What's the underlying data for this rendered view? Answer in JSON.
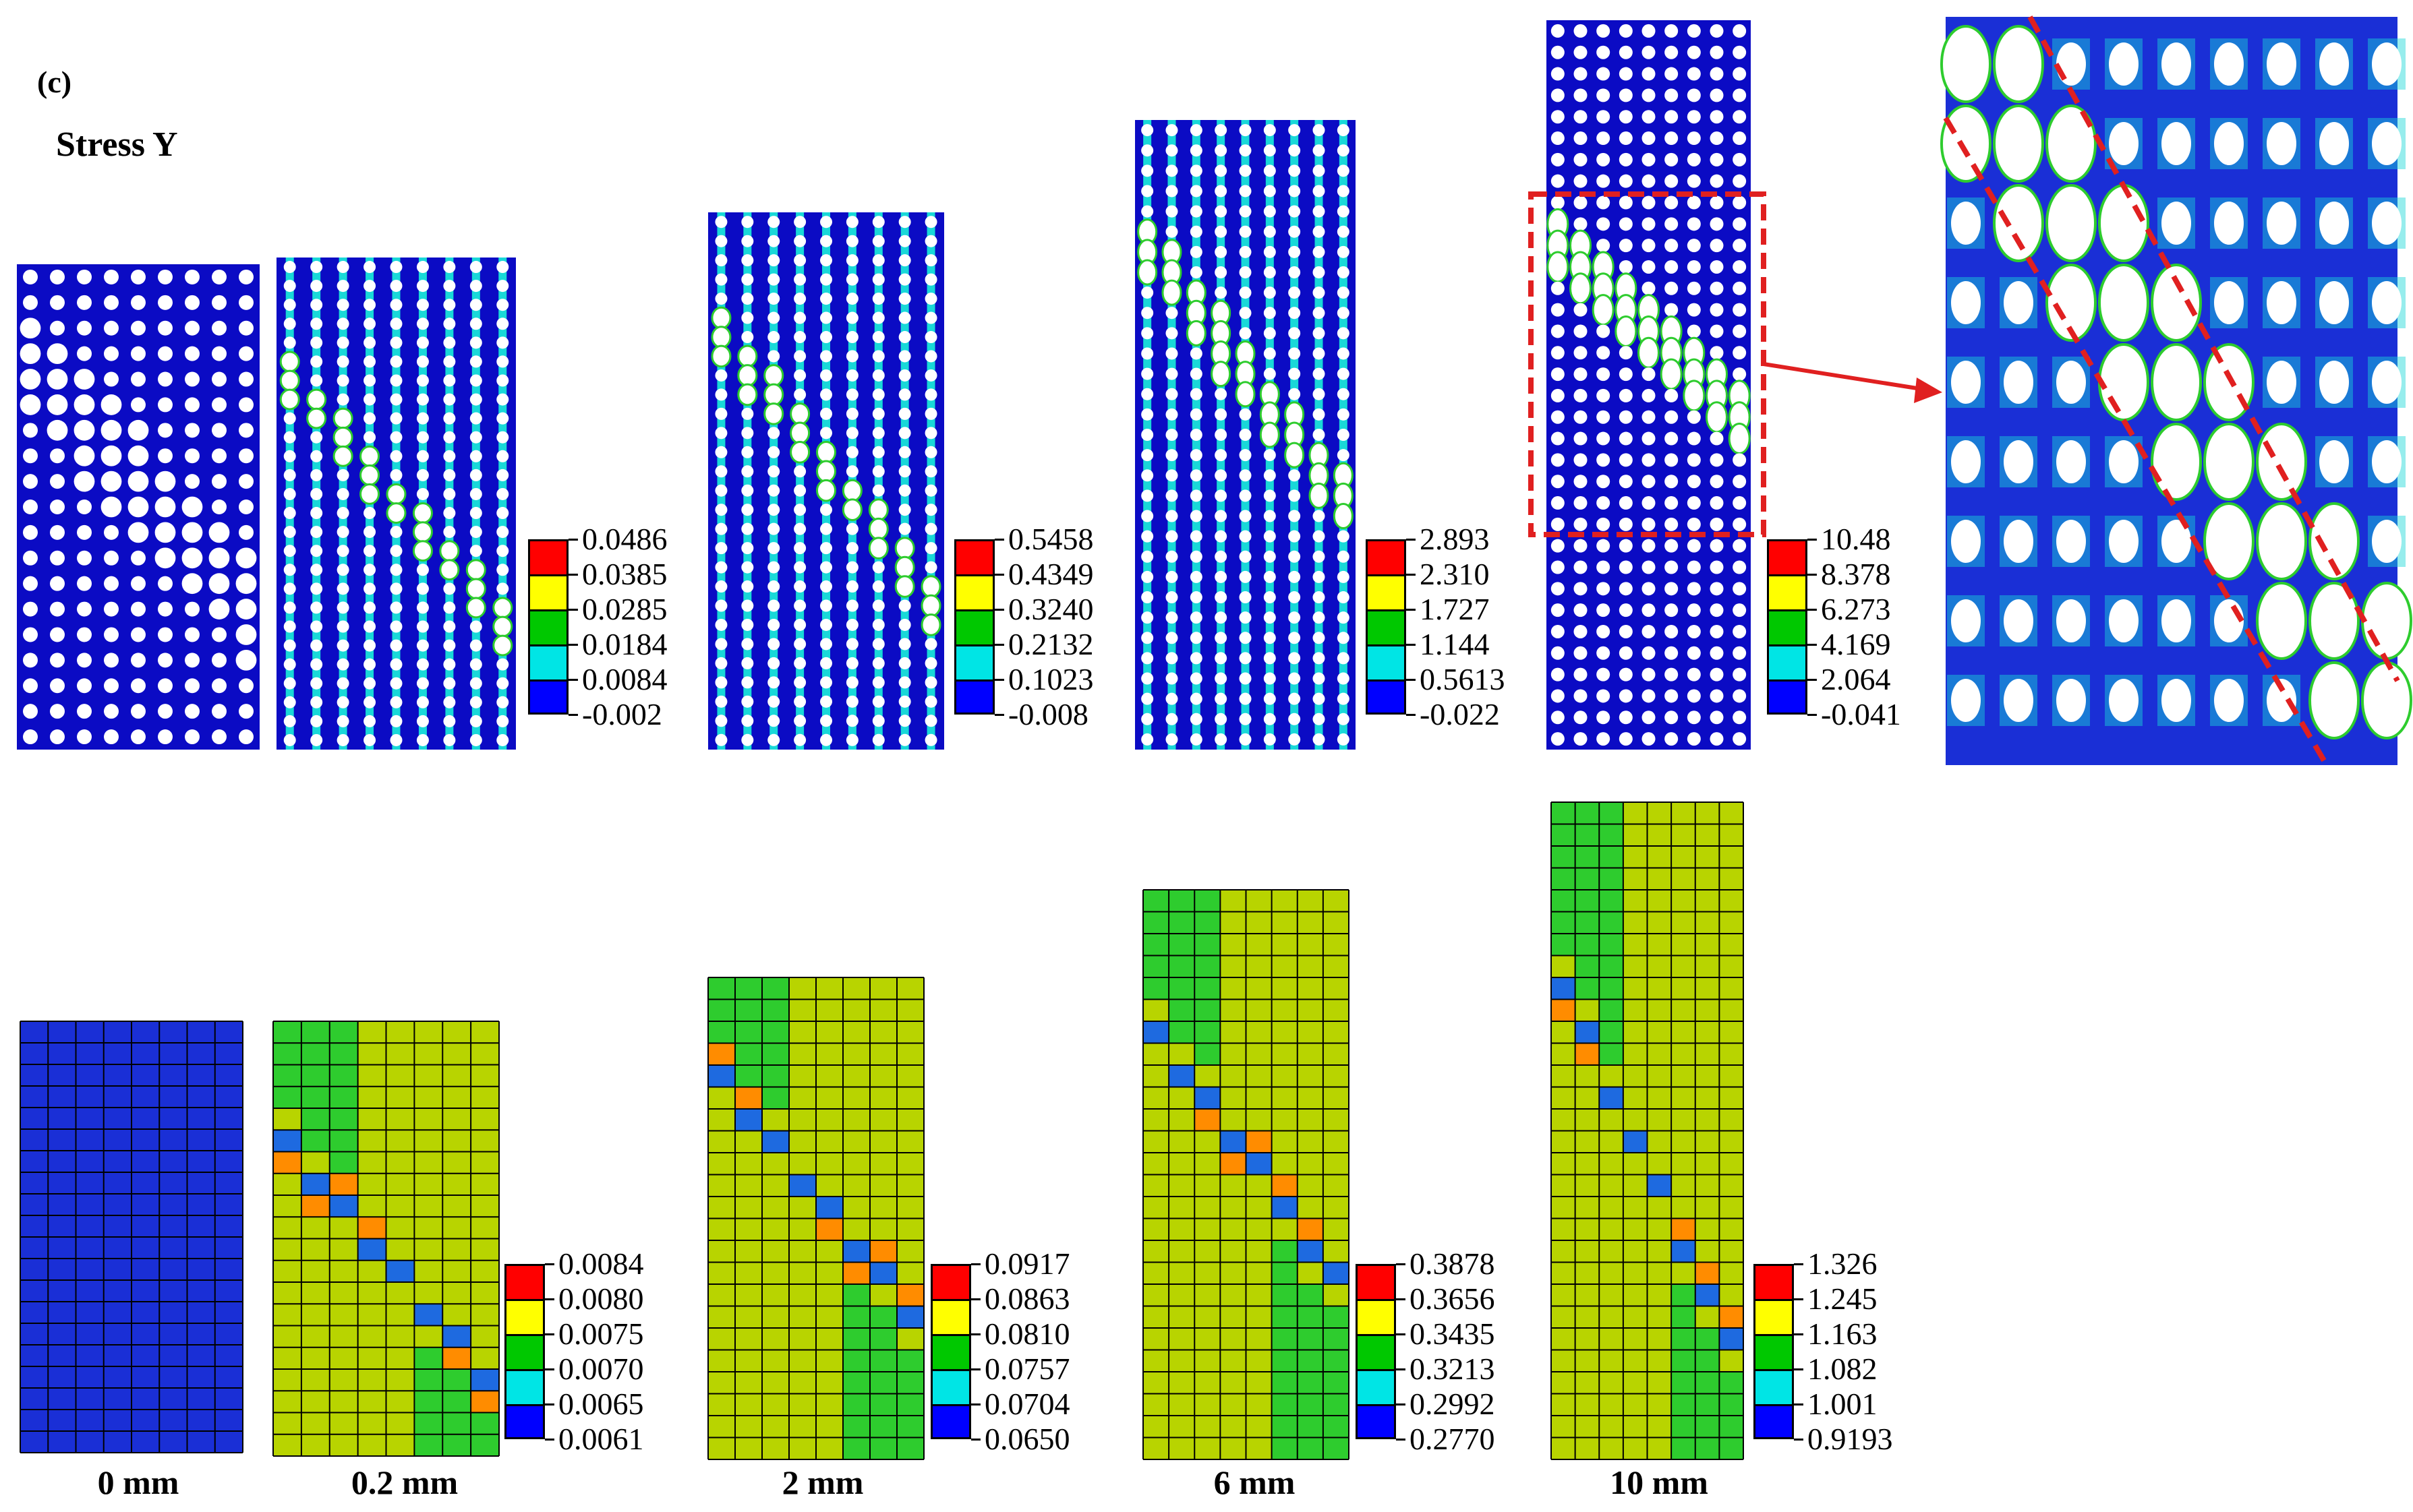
{
  "header": {
    "panel_label": "(c)",
    "title": "Stress Y"
  },
  "captions": [
    "0 mm",
    "0.2 mm",
    "2 mm",
    "6 mm",
    "10 mm"
  ],
  "legend_colors": [
    "#ff0000",
    "#ffff00",
    "#00c800",
    "#00e5e5",
    "#0000ff"
  ],
  "top_legends": [
    {
      "labels": [
        "0.0486",
        "0.0385",
        "0.0285",
        "0.0184",
        "0.0084",
        "-0.002"
      ]
    },
    {
      "labels": [
        "0.5458",
        "0.4349",
        "0.3240",
        "0.2132",
        "0.1023",
        "-0.008"
      ]
    },
    {
      "labels": [
        "2.893",
        "2.310",
        "1.727",
        "1.144",
        "0.5613",
        "-0.022"
      ]
    },
    {
      "labels": [
        "10.48",
        "8.378",
        "6.273",
        "4.169",
        "2.064",
        "-0.041"
      ]
    }
  ],
  "bottom_legends": [
    {
      "labels": [
        "0.0084",
        "0.0080",
        "0.0075",
        "0.0070",
        "0.0065",
        "0.0061"
      ]
    },
    {
      "labels": [
        "0.0917",
        "0.0863",
        "0.0810",
        "0.0757",
        "0.0704",
        "0.0650"
      ]
    },
    {
      "labels": [
        "0.3878",
        "0.3656",
        "0.3435",
        "0.3213",
        "0.2992",
        "0.2770"
      ]
    },
    {
      "labels": [
        "1.326",
        "1.245",
        "1.163",
        "1.082",
        "1.001",
        "0.9193"
      ]
    }
  ],
  "colors": {
    "dark_blue": "#0b0bc4",
    "mesh_blue": "#1a2fd6",
    "cyan": "#19d8d8",
    "green": "#2ecc2e",
    "yellow_green": "#b8d400",
    "orange": "#ff8c00",
    "red": "#ff0000",
    "band_blue": "#1e6ae0",
    "highlight": "#e02020"
  }
}
